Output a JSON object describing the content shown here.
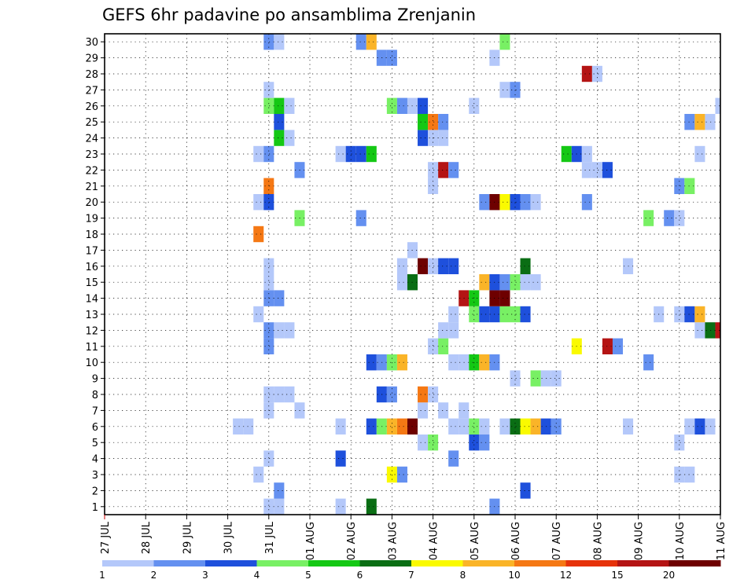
{
  "chart_data": {
    "type": "heatmap",
    "title": "GEFS 6hr padavine po ansamblima Zrenjanin",
    "x_tick_labels": [
      "27 JUL",
      "28 JUL",
      "29 JUL",
      "30 JUL",
      "31 JUL",
      "01 AUG",
      "02 AUG",
      "03 AUG",
      "04 AUG",
      "05 AUG",
      "06 AUG",
      "07 AUG",
      "08 AUG",
      "09 AUG",
      "10 AUG",
      "11 AUG"
    ],
    "y_tick_labels": [
      "1",
      "2",
      "3",
      "4",
      "5",
      "6",
      "7",
      "8",
      "9",
      "10",
      "11",
      "12",
      "13",
      "14",
      "15",
      "16",
      "17",
      "18",
      "19",
      "20",
      "21",
      "22",
      "23",
      "24",
      "25",
      "26",
      "27",
      "28",
      "29",
      "30"
    ],
    "x_unit": "6-hour step from 27 JUL 00",
    "xlim": [
      0,
      60
    ],
    "ylim": [
      0.5,
      30.5
    ],
    "grid": true,
    "colorbar": {
      "labels": [
        "1",
        "2",
        "3",
        "4",
        "5",
        "6",
        "7",
        "8",
        "10",
        "12",
        "15",
        "20"
      ],
      "colors": [
        "#b4c8fa",
        "#6490f0",
        "#1e50dc",
        "#78f064",
        "#14c814",
        "#0a6e14",
        "#fafa00",
        "#fab428",
        "#f57814",
        "#e6320a",
        "#b41414",
        "#6e0000"
      ]
    },
    "cells": [
      [
        16,
        1,
        1
      ],
      [
        17,
        1,
        1
      ],
      [
        23,
        1,
        1
      ],
      [
        26,
        1,
        6
      ],
      [
        38,
        1,
        2
      ],
      [
        17,
        2,
        2
      ],
      [
        41,
        2,
        3
      ],
      [
        15,
        3,
        1
      ],
      [
        28,
        3,
        7
      ],
      [
        29,
        3,
        2
      ],
      [
        56,
        3,
        1
      ],
      [
        57,
        3,
        1
      ],
      [
        16,
        4,
        1
      ],
      [
        23,
        4,
        3
      ],
      [
        34,
        4,
        2
      ],
      [
        31,
        5,
        1
      ],
      [
        32,
        5,
        4
      ],
      [
        36,
        5,
        3
      ],
      [
        37,
        5,
        2
      ],
      [
        56,
        5,
        1
      ],
      [
        13,
        6,
        1
      ],
      [
        14,
        6,
        1
      ],
      [
        23,
        6,
        1
      ],
      [
        26,
        6,
        3
      ],
      [
        27,
        6,
        4
      ],
      [
        28,
        6,
        8
      ],
      [
        29,
        6,
        9
      ],
      [
        30,
        6,
        12
      ],
      [
        34,
        6,
        1
      ],
      [
        35,
        6,
        1
      ],
      [
        36,
        6,
        4
      ],
      [
        37,
        6,
        1
      ],
      [
        39,
        6,
        1
      ],
      [
        40,
        6,
        6
      ],
      [
        41,
        6,
        7
      ],
      [
        42,
        6,
        8
      ],
      [
        43,
        6,
        3
      ],
      [
        44,
        6,
        2
      ],
      [
        51,
        6,
        1
      ],
      [
        57,
        6,
        1
      ],
      [
        58,
        6,
        3
      ],
      [
        59,
        6,
        1
      ],
      [
        16,
        7,
        1
      ],
      [
        19,
        7,
        1
      ],
      [
        31,
        7,
        1
      ],
      [
        33,
        7,
        1
      ],
      [
        35,
        7,
        1
      ],
      [
        16,
        8,
        1
      ],
      [
        17,
        8,
        1
      ],
      [
        18,
        8,
        1
      ],
      [
        27,
        8,
        3
      ],
      [
        28,
        8,
        2
      ],
      [
        31,
        8,
        9
      ],
      [
        32,
        8,
        1
      ],
      [
        40,
        9,
        1
      ],
      [
        42,
        9,
        4
      ],
      [
        43,
        9,
        1
      ],
      [
        44,
        9,
        1
      ],
      [
        26,
        10,
        3
      ],
      [
        27,
        10,
        2
      ],
      [
        28,
        10,
        4
      ],
      [
        29,
        10,
        8
      ],
      [
        34,
        10,
        1
      ],
      [
        35,
        10,
        1
      ],
      [
        36,
        10,
        5
      ],
      [
        37,
        10,
        8
      ],
      [
        38,
        10,
        2
      ],
      [
        53,
        10,
        2
      ],
      [
        16,
        11,
        2
      ],
      [
        32,
        11,
        1
      ],
      [
        33,
        11,
        4
      ],
      [
        46,
        11,
        7
      ],
      [
        49,
        11,
        11
      ],
      [
        50,
        11,
        2
      ],
      [
        16,
        12,
        2
      ],
      [
        17,
        12,
        1
      ],
      [
        18,
        12,
        1
      ],
      [
        33,
        12,
        1
      ],
      [
        34,
        12,
        1
      ],
      [
        58,
        12,
        1
      ],
      [
        59,
        12,
        6
      ],
      [
        60,
        12,
        11
      ],
      [
        15,
        13,
        1
      ],
      [
        34,
        13,
        1
      ],
      [
        36,
        13,
        4
      ],
      [
        37,
        13,
        3
      ],
      [
        38,
        13,
        3
      ],
      [
        39,
        13,
        4
      ],
      [
        40,
        13,
        4
      ],
      [
        41,
        13,
        3
      ],
      [
        54,
        13,
        1
      ],
      [
        56,
        13,
        1
      ],
      [
        57,
        13,
        3
      ],
      [
        58,
        13,
        8
      ],
      [
        16,
        14,
        2
      ],
      [
        17,
        14,
        2
      ],
      [
        35,
        14,
        11
      ],
      [
        36,
        14,
        5
      ],
      [
        38,
        14,
        12
      ],
      [
        39,
        14,
        12
      ],
      [
        16,
        15,
        1
      ],
      [
        29,
        15,
        1
      ],
      [
        30,
        15,
        6
      ],
      [
        37,
        15,
        8
      ],
      [
        38,
        15,
        3
      ],
      [
        39,
        15,
        2
      ],
      [
        40,
        15,
        4
      ],
      [
        41,
        15,
        1
      ],
      [
        42,
        15,
        1
      ],
      [
        16,
        16,
        1
      ],
      [
        29,
        16,
        1
      ],
      [
        31,
        16,
        12
      ],
      [
        32,
        16,
        1
      ],
      [
        33,
        16,
        3
      ],
      [
        34,
        16,
        3
      ],
      [
        41,
        16,
        6
      ],
      [
        51,
        16,
        1
      ],
      [
        30,
        17,
        1
      ],
      [
        15,
        18,
        9
      ],
      [
        19,
        19,
        4
      ],
      [
        25,
        19,
        2
      ],
      [
        53,
        19,
        4
      ],
      [
        55,
        19,
        2
      ],
      [
        56,
        19,
        1
      ],
      [
        15,
        20,
        1
      ],
      [
        16,
        20,
        3
      ],
      [
        37,
        20,
        2
      ],
      [
        38,
        20,
        12
      ],
      [
        39,
        20,
        7
      ],
      [
        40,
        20,
        3
      ],
      [
        41,
        20,
        2
      ],
      [
        42,
        20,
        1
      ],
      [
        47,
        20,
        2
      ],
      [
        16,
        21,
        9
      ],
      [
        32,
        21,
        1
      ],
      [
        56,
        21,
        2
      ],
      [
        57,
        21,
        4
      ],
      [
        19,
        22,
        2
      ],
      [
        32,
        22,
        1
      ],
      [
        33,
        22,
        11
      ],
      [
        34,
        22,
        2
      ],
      [
        47,
        22,
        1
      ],
      [
        48,
        22,
        1
      ],
      [
        49,
        22,
        3
      ],
      [
        15,
        23,
        1
      ],
      [
        16,
        23,
        2
      ],
      [
        23,
        23,
        1
      ],
      [
        24,
        23,
        3
      ],
      [
        25,
        23,
        3
      ],
      [
        26,
        23,
        5
      ],
      [
        45,
        23,
        5
      ],
      [
        46,
        23,
        3
      ],
      [
        47,
        23,
        1
      ],
      [
        58,
        23,
        1
      ],
      [
        17,
        24,
        5
      ],
      [
        18,
        24,
        1
      ],
      [
        31,
        24,
        3
      ],
      [
        32,
        24,
        1
      ],
      [
        33,
        24,
        1
      ],
      [
        17,
        25,
        3
      ],
      [
        31,
        25,
        5
      ],
      [
        32,
        25,
        9
      ],
      [
        33,
        25,
        2
      ],
      [
        57,
        25,
        2
      ],
      [
        58,
        25,
        8
      ],
      [
        59,
        25,
        1
      ],
      [
        16,
        26,
        4
      ],
      [
        17,
        26,
        5
      ],
      [
        18,
        26,
        1
      ],
      [
        28,
        26,
        4
      ],
      [
        29,
        26,
        2
      ],
      [
        30,
        26,
        1
      ],
      [
        31,
        26,
        3
      ],
      [
        36,
        26,
        1
      ],
      [
        60,
        26,
        1
      ],
      [
        16,
        27,
        1
      ],
      [
        39,
        27,
        1
      ],
      [
        40,
        27,
        2
      ],
      [
        47,
        28,
        11
      ],
      [
        48,
        28,
        1
      ],
      [
        27,
        29,
        2
      ],
      [
        28,
        29,
        2
      ],
      [
        38,
        29,
        1
      ],
      [
        16,
        30,
        2
      ],
      [
        17,
        30,
        1
      ],
      [
        25,
        30,
        2
      ],
      [
        26,
        30,
        8
      ],
      [
        39,
        30,
        4
      ]
    ]
  }
}
